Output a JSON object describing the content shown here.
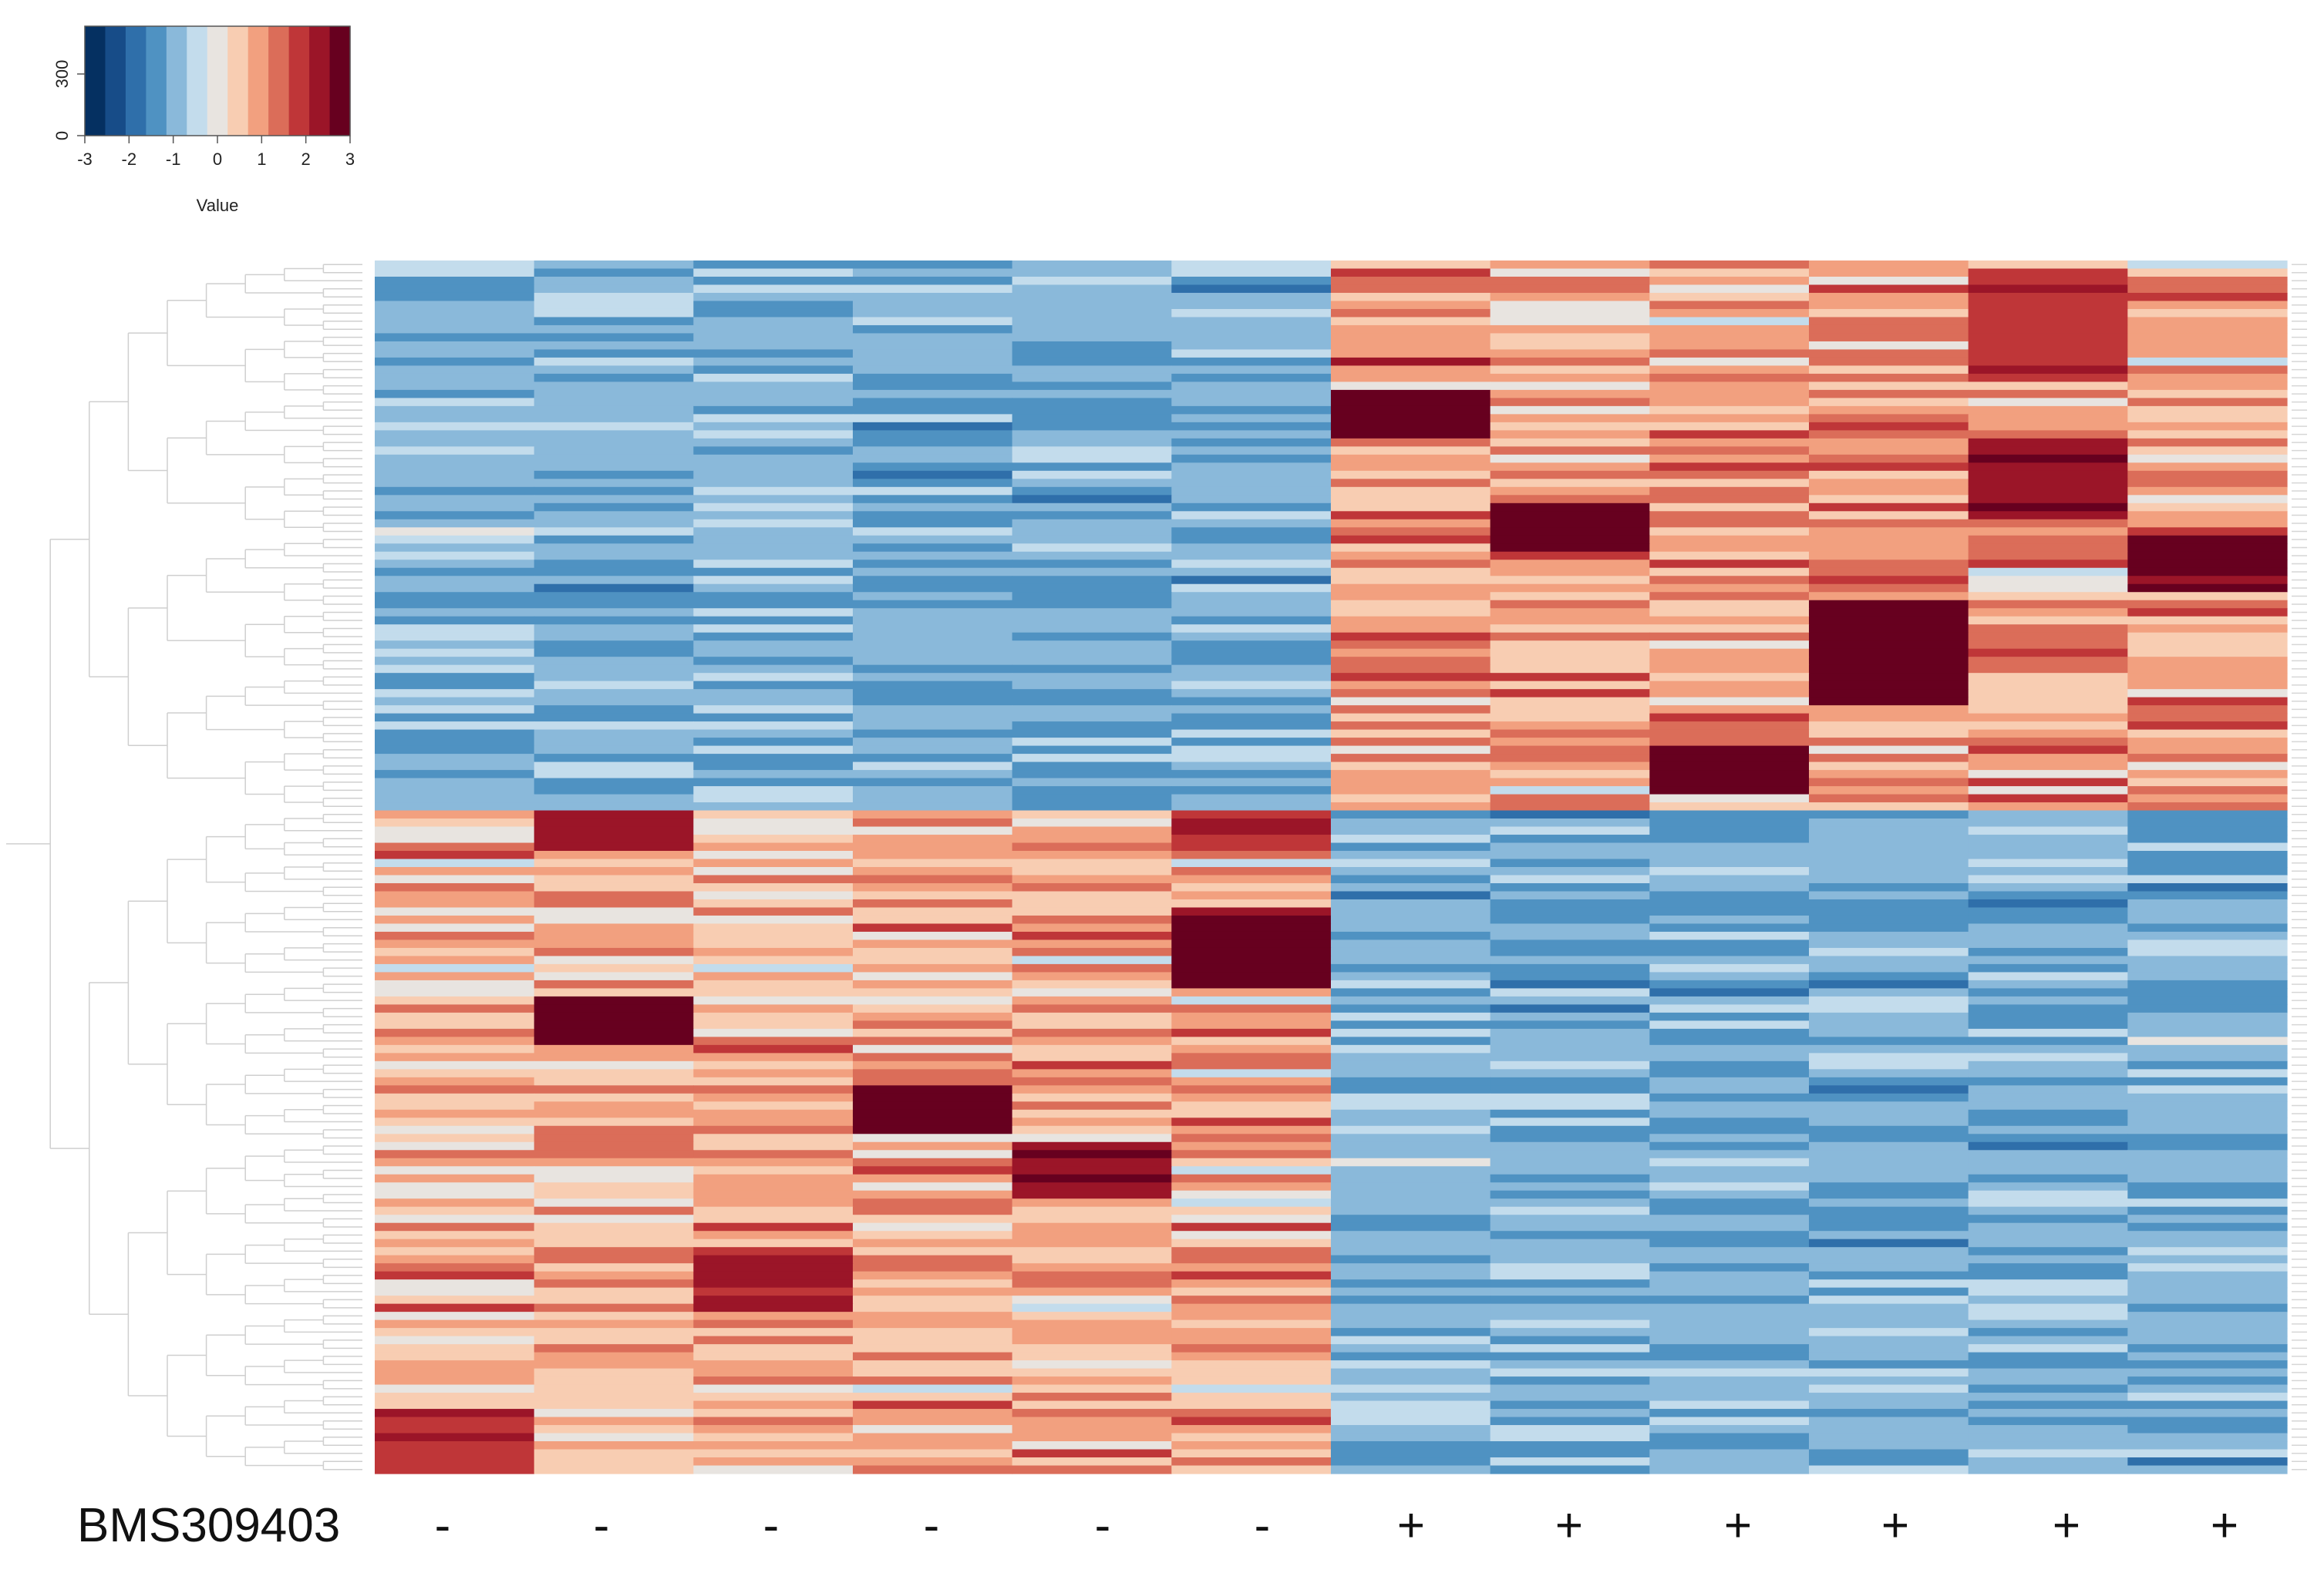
{
  "chart_data": {
    "type": "heatmap",
    "title": "",
    "row_label": "BMS309403",
    "columns": [
      "-",
      "-",
      "-",
      "-",
      "-",
      "-",
      "+",
      "+",
      "+",
      "+",
      "+",
      "+"
    ],
    "row_count": 150,
    "dendrogram": "rows, hierarchical clustering",
    "color_key": {
      "label": "Value",
      "y_ticks": [
        "0",
        "300"
      ],
      "x_ticks": [
        "-3",
        "-2",
        "-1",
        "0",
        "1",
        "2",
        "3"
      ],
      "range": [
        -3,
        3
      ],
      "colors": [
        "#053061",
        "#174c88",
        "#2f6faa",
        "#4f92c2",
        "#8ab9da",
        "#c3dcec",
        "#e8e4e0",
        "#f8cdb2",
        "#f2a07f",
        "#db6d59",
        "#bf3638",
        "#9b1528",
        "#67001f"
      ]
    },
    "row_groups": [
      {
        "rows": [
          0,
          67
        ],
        "high_in_columns": [
          7,
          8,
          9,
          10,
          11,
          12
        ],
        "mean_value_in_group_columns": 0.9,
        "mean_value_elsewhere": -1.0
      },
      {
        "rows": [
          68,
          149
        ],
        "high_in_columns": [
          1,
          2,
          3,
          4,
          5,
          6
        ],
        "mean_value_in_group_columns": 0.7,
        "mean_value_elsewhere": -1.0
      }
    ],
    "high_blocks": [
      {
        "column": 1,
        "rows": [
          142,
          149
        ],
        "value": 2.0
      },
      {
        "column": 2,
        "rows": [
          68,
          72
        ],
        "value": 2.3
      },
      {
        "column": 2,
        "rows": [
          91,
          96
        ],
        "value": 3.0
      },
      {
        "column": 3,
        "rows": [
          124,
          129
        ],
        "value": 2.2
      },
      {
        "column": 4,
        "rows": [
          102,
          107
        ],
        "value": 3.0
      },
      {
        "column": 5,
        "rows": [
          109,
          115
        ],
        "value": 2.6
      },
      {
        "column": 6,
        "rows": [
          68,
          72
        ],
        "value": 2.0
      },
      {
        "column": 6,
        "rows": [
          80,
          89
        ],
        "value": 2.6
      },
      {
        "column": 7,
        "rows": [
          16,
          21
        ],
        "value": 2.9
      },
      {
        "column": 8,
        "rows": [
          30,
          35
        ],
        "value": 3.0
      },
      {
        "column": 9,
        "rows": [
          60,
          65
        ],
        "value": 3.0
      },
      {
        "column": 10,
        "rows": [
          42,
          54
        ],
        "value": 2.8
      },
      {
        "column": 11,
        "rows": [
          1,
          14
        ],
        "value": 1.9
      },
      {
        "column": 11,
        "rows": [
          22,
          31
        ],
        "value": 2.5
      },
      {
        "column": 12,
        "rows": [
          34,
          40
        ],
        "value": 2.6
      }
    ]
  }
}
